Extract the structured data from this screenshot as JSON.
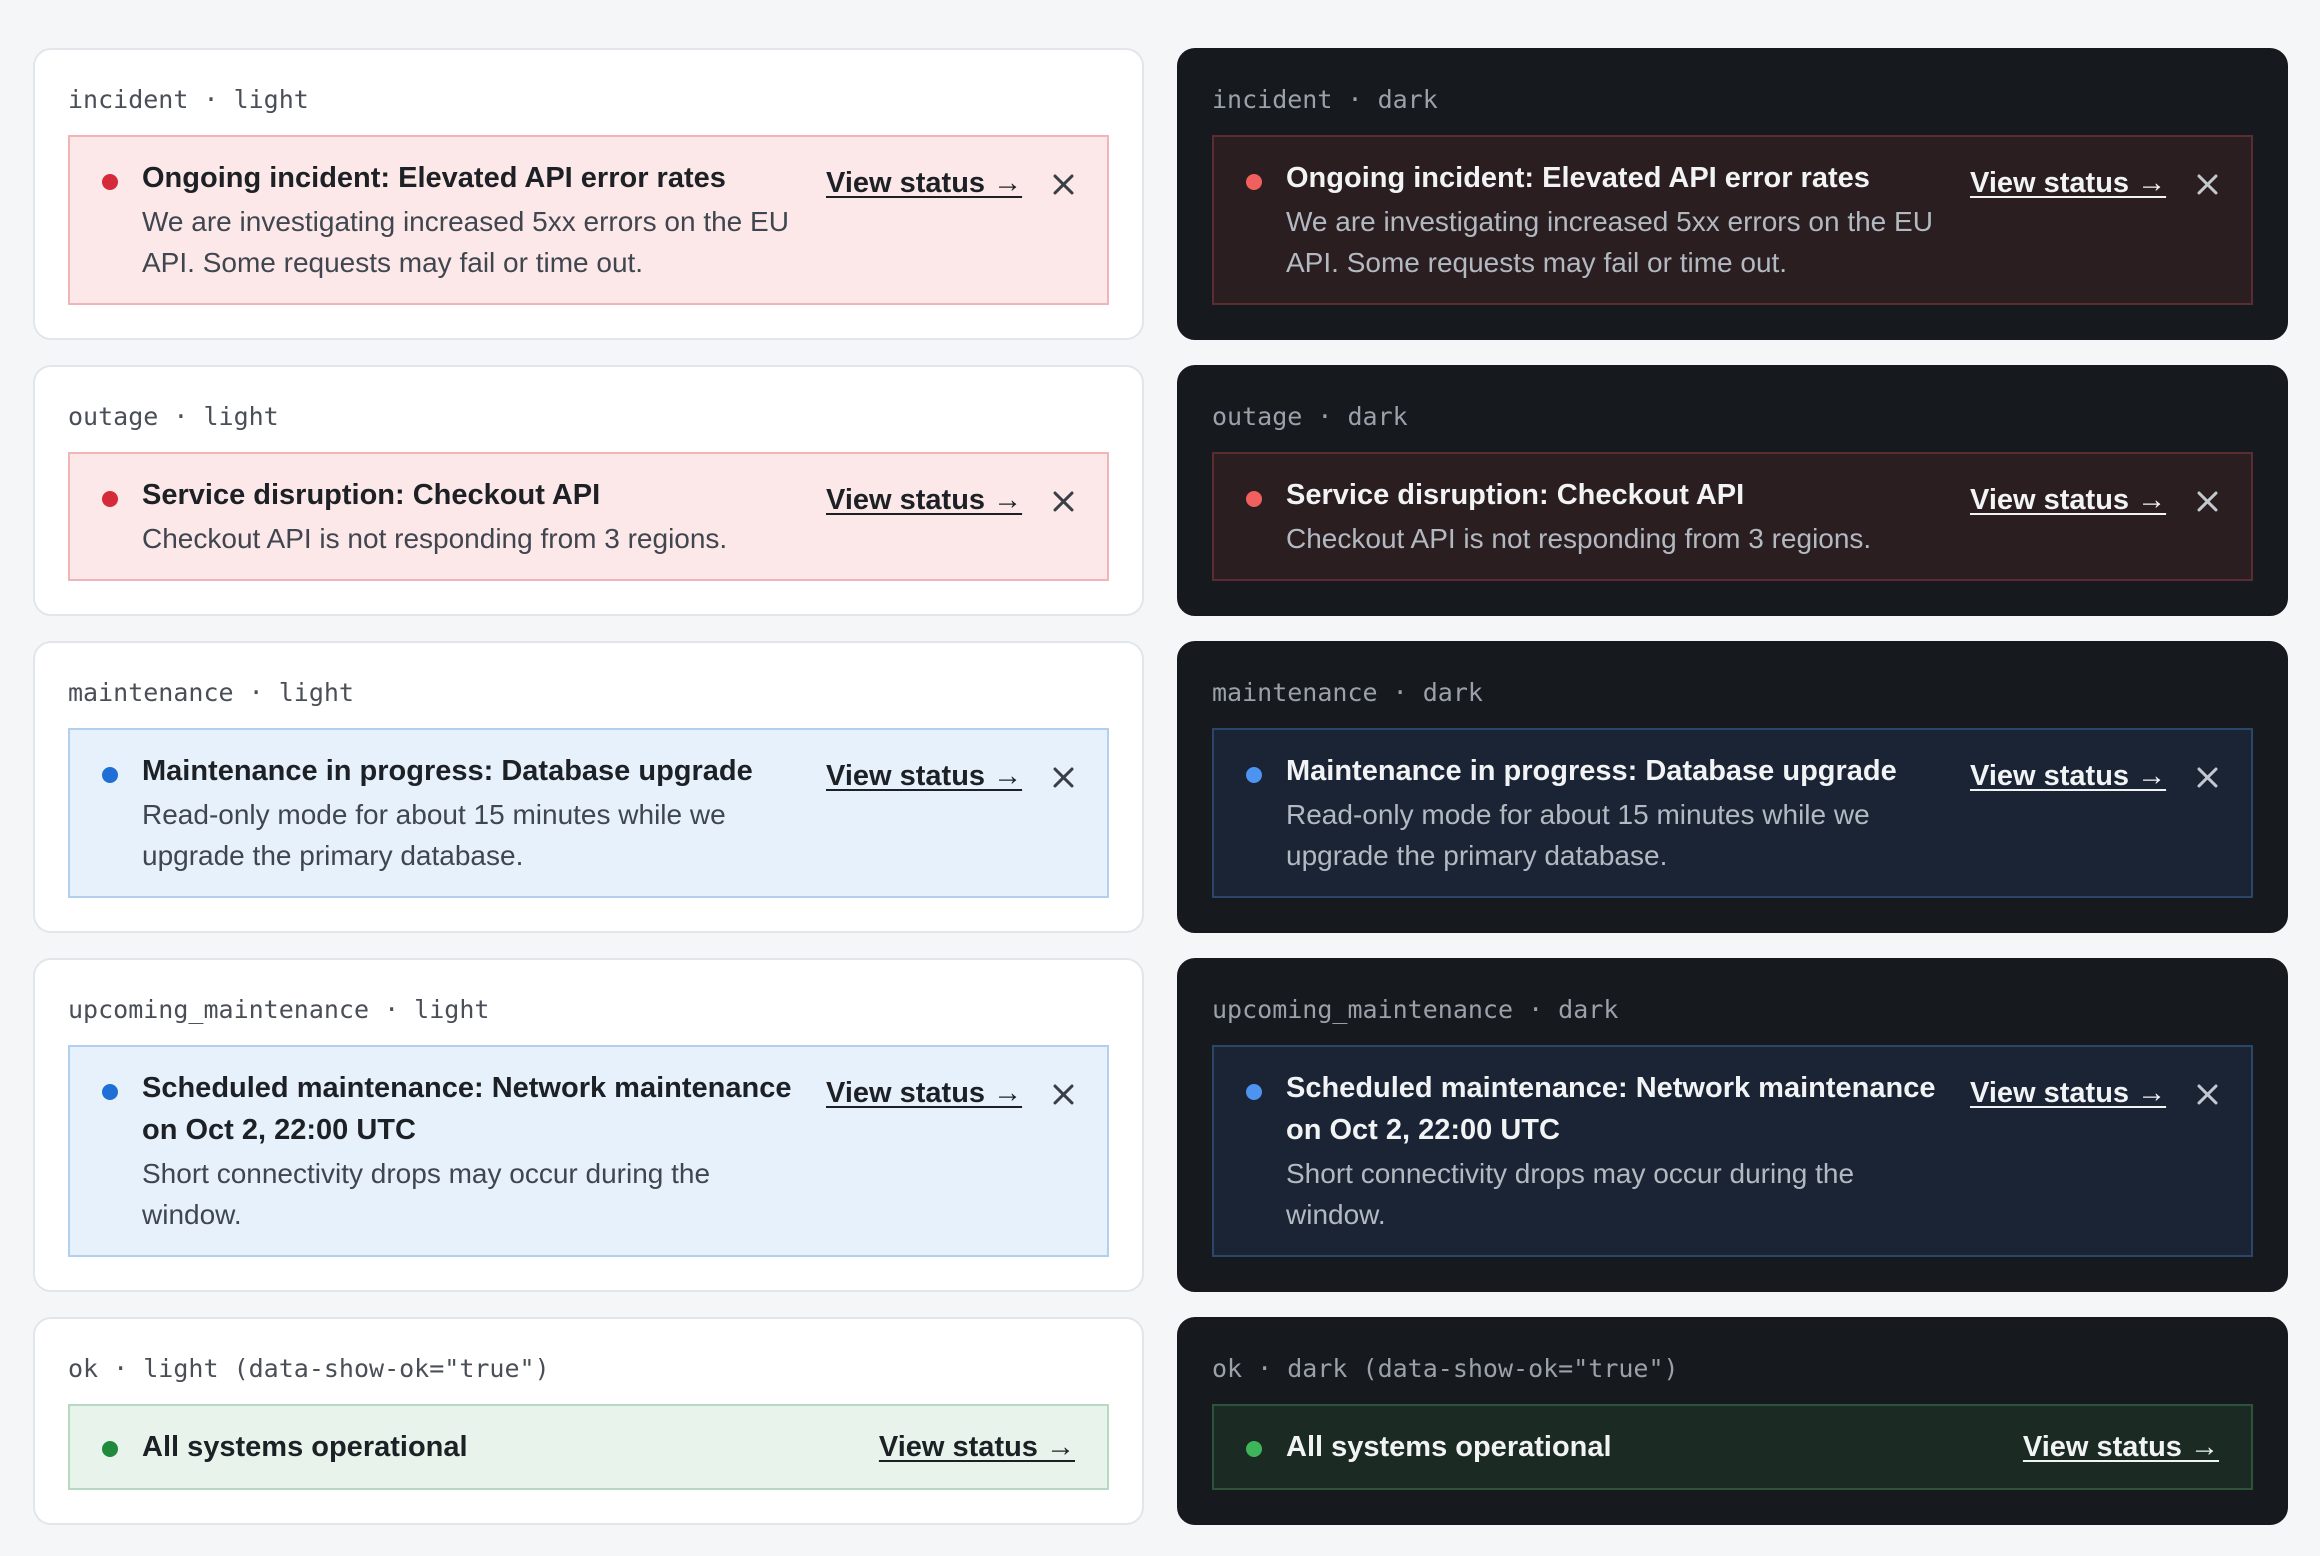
{
  "cards": {
    "incident_light": {
      "caption": "incident · light",
      "title": "Ongoing incident: Elevated API error rates",
      "desc": "We are investigating increased 5xx errors on the EU API. Some requests may fail or time out.",
      "link": "View status →"
    },
    "incident_dark": {
      "caption": "incident · dark",
      "title": "Ongoing incident: Elevated API error rates",
      "desc": "We are investigating increased 5xx errors on the EU API. Some requests may fail or time out.",
      "link": "View status →"
    },
    "outage_light": {
      "caption": "outage · light",
      "title": "Service disruption: Checkout API",
      "desc": "Checkout API is not responding from 3 regions.",
      "link": "View status →"
    },
    "outage_dark": {
      "caption": "outage · dark",
      "title": "Service disruption: Checkout API",
      "desc": "Checkout API is not responding from 3 regions.",
      "link": "View status →"
    },
    "maintenance_light": {
      "caption": "maintenance · light",
      "title": "Maintenance in progress: Database upgrade",
      "desc": "Read-only mode for about 15 minutes while we upgrade the primary database.",
      "link": "View status →"
    },
    "maintenance_dark": {
      "caption": "maintenance · dark",
      "title": "Maintenance in progress: Database upgrade",
      "desc": "Read-only mode for about 15 minutes while we upgrade the primary database.",
      "link": "View status →"
    },
    "upcoming_light": {
      "caption": "upcoming_maintenance · light",
      "title": "Scheduled maintenance: Network maintenance on Oct 2, 22:00 UTC",
      "desc": "Short connectivity drops may occur during the window.",
      "link": "View status →"
    },
    "upcoming_dark": {
      "caption": "upcoming_maintenance · dark",
      "title": "Scheduled maintenance: Network maintenance on Oct 2, 22:00 UTC",
      "desc": "Short connectivity drops may occur during the window.",
      "link": "View status →"
    },
    "ok_light": {
      "caption": "ok · light (data-show-ok=\"true\")",
      "title": "All systems operational",
      "link": "View status →"
    },
    "ok_dark": {
      "caption": "ok · dark (data-show-ok=\"true\")",
      "title": "All systems operational",
      "link": "View status →"
    }
  },
  "colors": {
    "incident_dot_light": "#d42a3a",
    "maintenance_dot_light": "#1f6fd6",
    "ok_dot_light": "#1f8a3c",
    "incident_dot_dark": "#f0605f",
    "maintenance_dot_dark": "#4d93f0",
    "ok_dot_dark": "#3fb55b"
  }
}
